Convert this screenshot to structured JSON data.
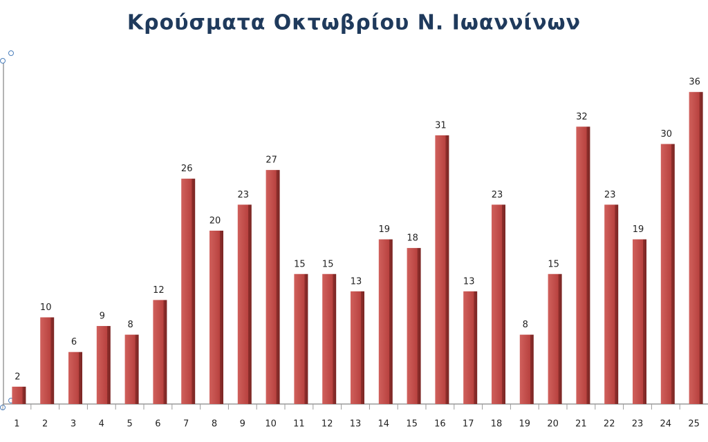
{
  "chart_data": {
    "type": "bar",
    "title": "Κρούσματα Οκτωβρίου Ν. Ιωαννίνων",
    "categories": [
      "1",
      "2",
      "3",
      "4",
      "5",
      "6",
      "7",
      "8",
      "9",
      "10",
      "11",
      "12",
      "13",
      "14",
      "15",
      "16",
      "17",
      "18",
      "19",
      "20",
      "21",
      "22",
      "23",
      "24",
      "25"
    ],
    "values": [
      2,
      10,
      6,
      9,
      8,
      12,
      26,
      20,
      23,
      27,
      15,
      15,
      13,
      19,
      18,
      31,
      13,
      23,
      8,
      15,
      32,
      23,
      19,
      30,
      36
    ],
    "color": "#c0504d",
    "ylim": [
      0,
      40
    ]
  }
}
